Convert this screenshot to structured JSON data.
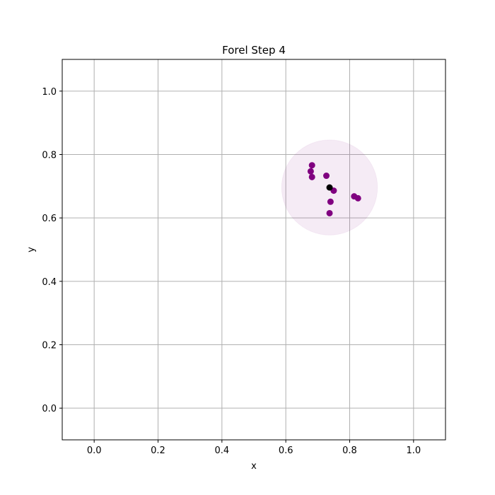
{
  "chart_data": {
    "type": "scatter",
    "title": "Forel Step 4",
    "xlabel": "x",
    "ylabel": "y",
    "xlim": [
      -0.1,
      1.1
    ],
    "ylim": [
      -0.1,
      1.1
    ],
    "xticks": [
      0.0,
      0.2,
      0.4,
      0.6,
      0.8,
      1.0
    ],
    "yticks": [
      0.0,
      0.2,
      0.4,
      0.6,
      0.8,
      1.0
    ],
    "xtick_labels": [
      "0.0",
      "0.2",
      "0.4",
      "0.6",
      "0.8",
      "1.0"
    ],
    "ytick_labels": [
      "0.0",
      "0.2",
      "0.4",
      "0.6",
      "0.8",
      "1.0"
    ],
    "grid": true,
    "series": [
      {
        "color": "#800080",
        "points": [
          {
            "x": 0.682,
            "y": 0.766
          },
          {
            "x": 0.678,
            "y": 0.747
          },
          {
            "x": 0.682,
            "y": 0.729
          },
          {
            "x": 0.727,
            "y": 0.733
          },
          {
            "x": 0.75,
            "y": 0.686
          },
          {
            "x": 0.74,
            "y": 0.651
          },
          {
            "x": 0.737,
            "y": 0.615
          },
          {
            "x": 0.814,
            "y": 0.668
          },
          {
            "x": 0.826,
            "y": 0.662
          }
        ]
      },
      {
        "color": "#000000",
        "points": [
          {
            "x": 0.737,
            "y": 0.696
          }
        ]
      }
    ],
    "circle": {
      "center": {
        "x": 0.737,
        "y": 0.696
      },
      "radius": 0.15,
      "fill": "#800080",
      "fill_opacity": 0.08
    }
  }
}
